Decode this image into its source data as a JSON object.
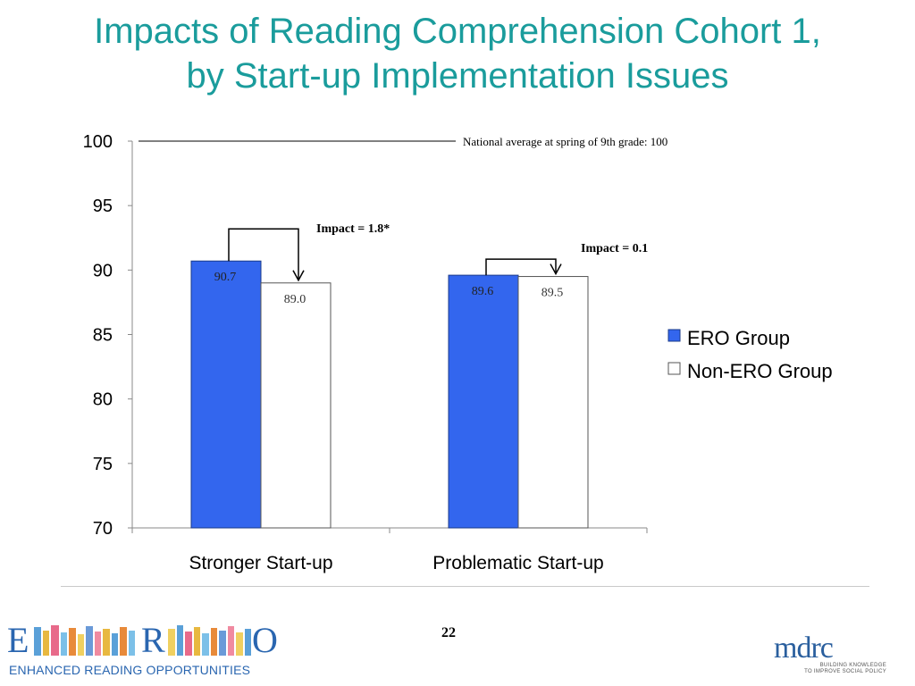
{
  "slide": {
    "title_line1": "Impacts of Reading Comprehension Cohort 1,",
    "title_line2": "by Start-up Implementation Issues",
    "page_number": "22",
    "title_color": "#1a9c9c"
  },
  "chart_data": {
    "type": "bar",
    "categories": [
      "Stronger Start-up",
      "Problematic Start-up"
    ],
    "series": [
      {
        "name": "ERO Group",
        "values": [
          90.7,
          89.6
        ],
        "labels": [
          "90.7",
          "89.6"
        ],
        "color": "#3366ee"
      },
      {
        "name": "Non-ERO Group",
        "values": [
          89.0,
          89.5
        ],
        "labels": [
          "89.0",
          "89.5"
        ],
        "color": "#ffffff"
      }
    ],
    "ylim": [
      70,
      100
    ],
    "yticks": [
      100,
      95,
      90,
      85,
      80,
      75,
      70
    ],
    "grid": false,
    "legend": "right",
    "reference_line": {
      "value": 100,
      "label": "National average at spring of 9th grade: 100"
    },
    "annotations": [
      {
        "category": "Stronger Start-up",
        "text": "Impact = 1.8*"
      },
      {
        "category": "Problematic Start-up",
        "text": "Impact = 0.1"
      }
    ]
  },
  "logos": {
    "ero_letters": [
      "E",
      "R",
      "O"
    ],
    "ero_tagline": "ENHANCED READING OPPORTUNITIES",
    "mdrc_name": "mdrc",
    "mdrc_tag_line1": "BUILDING KNOWLEDGE",
    "mdrc_tag_line2": "TO IMPROVE SOCIAL POLICY"
  }
}
